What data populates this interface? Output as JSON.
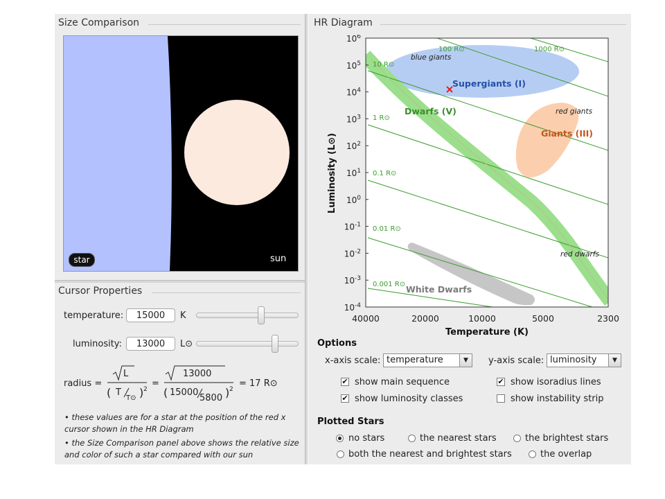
{
  "size_panel": {
    "title": "Size Comparison",
    "star_label": "star",
    "sun_label": "sun",
    "star_color": "#b3c2ff",
    "sun_color": "#fdeadf"
  },
  "cursor_panel": {
    "title": "Cursor Properties",
    "temperature_label": "temperature:",
    "temperature_value": "15000",
    "temperature_unit": "K",
    "luminosity_label": "luminosity:",
    "luminosity_value": "13000",
    "luminosity_unit": "L⊙",
    "formula": {
      "radius_label": "radius =",
      "sqrt_L": "L",
      "T_over": "T",
      "T_sun": "T⊙",
      "num_value": "13000",
      "T_value": "15000",
      "T_sun_value": "5800",
      "power": "2",
      "result": "= 17 R⊙",
      "equals": "="
    },
    "note1": "• these values are for a star at the position of the red x cursor shown in the HR Diagram",
    "note2": "• the Size Comparison panel above shows the relative size and color of such a star compared with our sun"
  },
  "hr_panel": {
    "title": "HR Diagram",
    "x_axis_title": "Temperature (K)",
    "y_axis_title": "Luminosity (L⊙)",
    "x_ticks": [
      "40000",
      "20000",
      "10000",
      "5000",
      "2300"
    ],
    "y_exponents": [
      "6",
      "5",
      "4",
      "3",
      "2",
      "1",
      "0",
      "-1",
      "-2",
      "-3",
      "-4"
    ],
    "y_base": "10",
    "isoradius_labels": [
      "0.001 R⊙",
      "0.01 R⊙",
      "0.1 R⊙",
      "1 R⊙",
      "10 R⊙",
      "100 R⊙",
      "1000 R⊙"
    ],
    "regions": {
      "blue_giants": "blue giants",
      "supergiants": "Supergiants (I)",
      "dwarfs": "Dwarfs (V)",
      "red_giants": "red giants",
      "giants": "Giants (III)",
      "red_dwarfs": "red dwarfs",
      "white_dwarfs": "White Dwarfs"
    },
    "colors": {
      "main_sequence": "#9bdf8c",
      "supergiants_fill": "#b6cdf3",
      "giants_fill": "#fbcfae",
      "white_dwarfs_fill": "#c6c6c6",
      "isoradius": "#3b9a2e",
      "cursor": "#e02020",
      "supergiants_text": "#2550a8",
      "giants_text": "#c2551a",
      "dwarfs_text": "#3a8f2a"
    }
  },
  "options": {
    "title": "Options",
    "x_scale_label": "x-axis scale:",
    "x_scale_value": "temperature",
    "y_scale_label": "y-axis scale:",
    "y_scale_value": "luminosity",
    "checkboxes": [
      {
        "label": "show main sequence",
        "checked": true
      },
      {
        "label": "show isoradius lines",
        "checked": true
      },
      {
        "label": "show luminosity classes",
        "checked": true
      },
      {
        "label": "show instability strip",
        "checked": false
      }
    ]
  },
  "plotted_stars": {
    "title": "Plotted Stars",
    "choices": [
      {
        "label": "no stars",
        "selected": true
      },
      {
        "label": "the nearest stars",
        "selected": false
      },
      {
        "label": "the brightest stars",
        "selected": false
      },
      {
        "label": "both the nearest and brightest stars",
        "selected": false
      },
      {
        "label": "the overlap",
        "selected": false
      }
    ]
  }
}
